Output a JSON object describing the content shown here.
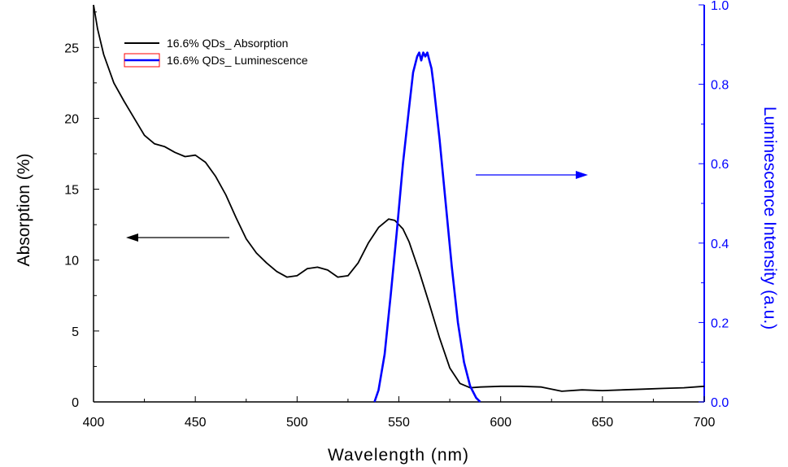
{
  "chart_data": {
    "type": "line",
    "xlabel": "Wavelength (nm)",
    "ylabel_left": "Absorption (%)",
    "ylabel_right": "Luminescence Intensity (a.u.)",
    "xlim": [
      400,
      700
    ],
    "ylim_left": [
      0,
      28
    ],
    "ylim_right": [
      0,
      1.0
    ],
    "x_ticks": [
      "400",
      "450",
      "500",
      "550",
      "600",
      "650",
      "700"
    ],
    "y_left_ticks": [
      "0",
      "5",
      "10",
      "15",
      "20",
      "25"
    ],
    "y_right_ticks": [
      "0.0",
      "0.2",
      "0.4",
      "0.6",
      "0.8",
      "1.0"
    ],
    "grid": false,
    "legend_position": "top-left",
    "series": [
      {
        "name": "16.6% QDs_ Absorption",
        "axis": "left",
        "color": "#000000",
        "x": [
          400,
          402,
          405,
          410,
          415,
          420,
          425,
          430,
          435,
          440,
          445,
          450,
          455,
          460,
          465,
          470,
          475,
          480,
          485,
          490,
          495,
          500,
          505,
          510,
          515,
          520,
          525,
          530,
          535,
          540,
          545,
          548,
          552,
          555,
          560,
          565,
          570,
          575,
          580,
          585,
          590,
          600,
          610,
          620,
          630,
          640,
          650,
          660,
          670,
          680,
          690,
          700
        ],
        "values": [
          28.0,
          26.3,
          24.5,
          22.5,
          21.2,
          20.0,
          18.8,
          18.2,
          18.0,
          17.6,
          17.3,
          17.4,
          16.9,
          15.9,
          14.6,
          13.0,
          11.5,
          10.5,
          9.8,
          9.2,
          8.8,
          8.9,
          9.4,
          9.5,
          9.3,
          8.8,
          8.9,
          9.8,
          11.2,
          12.3,
          12.9,
          12.8,
          12.2,
          11.3,
          9.2,
          6.9,
          4.5,
          2.4,
          1.3,
          1.0,
          1.05,
          1.1,
          1.1,
          1.05,
          0.75,
          0.85,
          0.8,
          0.85,
          0.9,
          0.95,
          1.0,
          1.1
        ]
      },
      {
        "name": "16.6% QDs_ Luminescence",
        "axis": "right",
        "color": "#0000ff",
        "x": [
          538,
          540,
          543,
          546,
          549,
          552,
          555,
          557,
          559,
          560,
          561,
          562,
          563,
          564,
          565,
          566,
          567,
          570,
          573,
          576,
          579,
          582,
          585,
          588,
          590
        ],
        "values": [
          0.0,
          0.03,
          0.12,
          0.27,
          0.43,
          0.6,
          0.74,
          0.83,
          0.87,
          0.88,
          0.86,
          0.88,
          0.87,
          0.88,
          0.86,
          0.84,
          0.8,
          0.66,
          0.5,
          0.34,
          0.2,
          0.1,
          0.04,
          0.01,
          0.0
        ]
      }
    ],
    "annotations": [
      {
        "type": "arrow",
        "direction": "left",
        "color": "#000000",
        "points_to": "left axis"
      },
      {
        "type": "arrow",
        "direction": "right",
        "color": "#0000ff",
        "points_to": "right axis"
      }
    ]
  }
}
